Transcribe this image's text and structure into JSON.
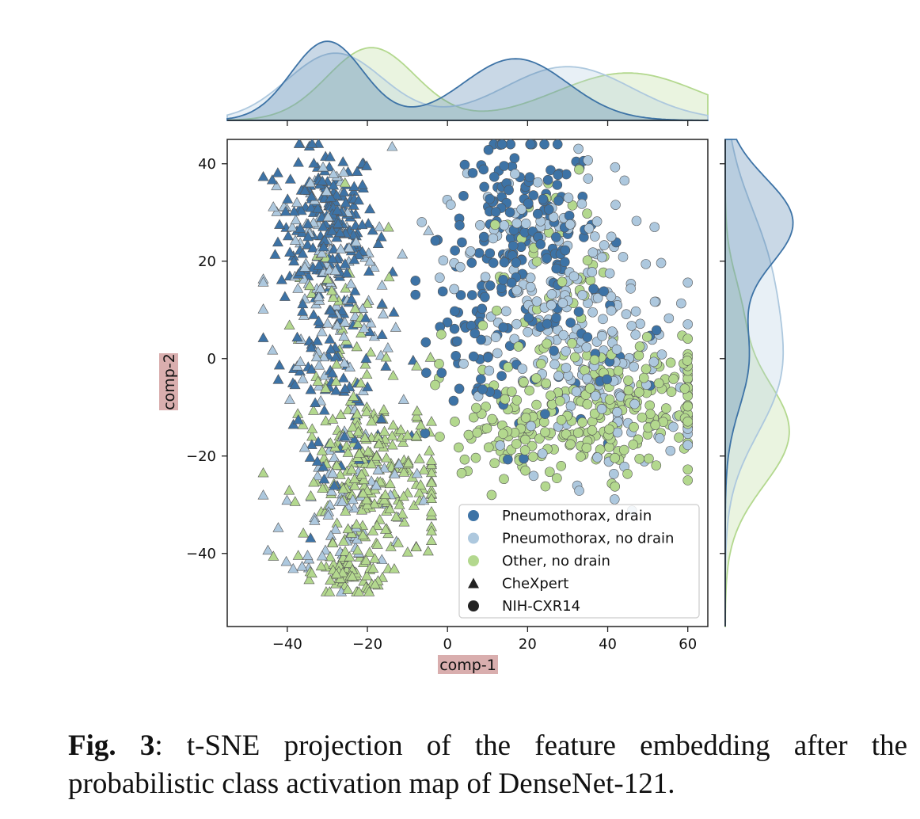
{
  "chart_data": {
    "type": "scatter",
    "title": "",
    "xlabel": "comp-1",
    "ylabel": "comp-2",
    "xlim": [
      -55,
      65
    ],
    "ylim": [
      -55,
      45
    ],
    "xticks": [
      "−40",
      "−20",
      "0",
      "20",
      "40",
      "60"
    ],
    "yticks": [
      "40",
      "20",
      "0",
      "−20",
      "−40"
    ],
    "xtick_values": [
      -40,
      -20,
      0,
      20,
      40,
      60
    ],
    "ytick_values": [
      40,
      20,
      0,
      -20,
      -40
    ],
    "grid": false,
    "legend_position": "lower-right",
    "legend": [
      {
        "label": "Pneumothorax, drain",
        "marker": "circle",
        "color": "#3d73a6"
      },
      {
        "label": "Pneumothorax, no drain",
        "marker": "circle",
        "color": "#adc8de"
      },
      {
        "label": "Other, no drain",
        "marker": "circle",
        "color": "#b3d88e"
      },
      {
        "label": "CheXpert",
        "marker": "triangle",
        "color": "#222222"
      },
      {
        "label": "NIH-CXR14",
        "marker": "circle",
        "color": "#222222"
      }
    ],
    "series": [
      {
        "name": "Pneumothorax, drain",
        "color": "#3d73a6",
        "clusters": [
          {
            "marker": "triangle",
            "cx": -30,
            "cy": 28,
            "sx": 6,
            "sy": 8,
            "n": 190
          },
          {
            "marker": "triangle",
            "cx": -28,
            "cy": 2,
            "sx": 7,
            "sy": 9,
            "n": 70
          },
          {
            "marker": "triangle",
            "cx": -28,
            "cy": -20,
            "sx": 6,
            "sy": 5,
            "n": 20
          },
          {
            "marker": "circle",
            "cx": 18,
            "cy": 25,
            "sx": 10,
            "sy": 10,
            "n": 160
          },
          {
            "marker": "circle",
            "cx": 8,
            "cy": 5,
            "sx": 6,
            "sy": 8,
            "n": 45
          },
          {
            "marker": "circle",
            "cx": 35,
            "cy": 0,
            "sx": 12,
            "sy": 10,
            "n": 30
          }
        ]
      },
      {
        "name": "Pneumothorax, no drain",
        "color": "#adc8de",
        "clusters": [
          {
            "marker": "triangle",
            "cx": -30,
            "cy": 15,
            "sx": 8,
            "sy": 14,
            "n": 130
          },
          {
            "marker": "triangle",
            "cx": -25,
            "cy": -30,
            "sx": 8,
            "sy": 8,
            "n": 70
          },
          {
            "marker": "circle",
            "cx": 25,
            "cy": 15,
            "sx": 12,
            "sy": 12,
            "n": 170
          },
          {
            "marker": "circle",
            "cx": 40,
            "cy": -5,
            "sx": 12,
            "sy": 10,
            "n": 110
          }
        ]
      },
      {
        "name": "Other, no drain",
        "color": "#b3d88e",
        "clusters": [
          {
            "marker": "triangle",
            "cx": -18,
            "cy": -25,
            "sx": 9,
            "sy": 9,
            "n": 240
          },
          {
            "marker": "triangle",
            "cx": -24,
            "cy": -44,
            "sx": 4,
            "sy": 2.5,
            "n": 60
          },
          {
            "marker": "triangle",
            "cx": -28,
            "cy": 5,
            "sx": 8,
            "sy": 12,
            "n": 45
          },
          {
            "marker": "circle",
            "cx": 40,
            "cy": -10,
            "sx": 14,
            "sy": 7,
            "n": 230
          },
          {
            "marker": "circle",
            "cx": 15,
            "cy": -15,
            "sx": 7,
            "sy": 6,
            "n": 60
          },
          {
            "marker": "circle",
            "cx": 25,
            "cy": 20,
            "sx": 8,
            "sy": 10,
            "n": 40
          }
        ]
      }
    ],
    "marginal_x": {
      "type": "kde",
      "series": [
        {
          "name": "Pneumothorax, drain",
          "peaks": [
            {
              "x": -30,
              "h": 1.0,
              "w": 9
            },
            {
              "x": 17,
              "h": 0.78,
              "w": 13
            }
          ]
        },
        {
          "name": "Pneumothorax, no drain",
          "peaks": [
            {
              "x": -28,
              "h": 0.85,
              "w": 12
            },
            {
              "x": 30,
              "h": 0.68,
              "w": 16
            }
          ]
        },
        {
          "name": "Other, no drain",
          "peaks": [
            {
              "x": -19,
              "h": 0.92,
              "w": 11
            },
            {
              "x": 45,
              "h": 0.6,
              "w": 18
            }
          ]
        }
      ]
    },
    "marginal_y": {
      "type": "kde",
      "series": [
        {
          "name": "Pneumothorax, drain",
          "peaks": [
            {
              "y": 28,
              "h": 1.0,
              "w": 9
            },
            {
              "y": 0,
              "h": 0.35,
              "w": 10
            }
          ]
        },
        {
          "name": "Pneumothorax, no drain",
          "peaks": [
            {
              "y": 18,
              "h": 0.6,
              "w": 14
            },
            {
              "y": -5,
              "h": 0.65,
              "w": 12
            }
          ]
        },
        {
          "name": "Other, no drain",
          "peaks": [
            {
              "y": -15,
              "h": 0.95,
              "w": 11
            },
            {
              "y": 10,
              "h": 0.2,
              "w": 8
            }
          ]
        }
      ]
    }
  },
  "caption": {
    "label": "Fig. 3",
    "text": ": t-SNE projection of the feature embedding after the probabilistic class activation map of DenseNet-121."
  }
}
